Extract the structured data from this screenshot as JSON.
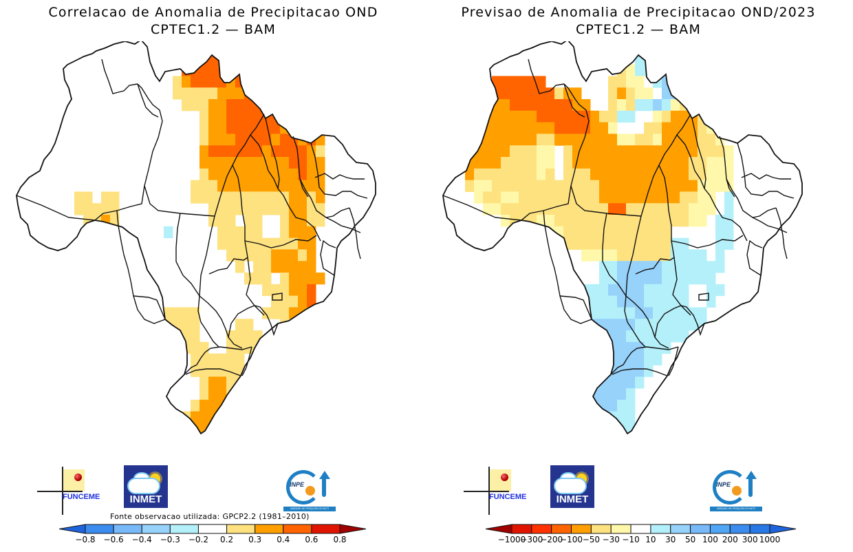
{
  "left_panel": {
    "title_line1": "Correlacao de Anomalia de Precipitacao OND",
    "title_line2": "CPTEC1.2 — BAM",
    "source_note": "Fonte observacao utilizada: GPCP2.2 (1981–2010)",
    "colorbar": {
      "labels": [
        "−0.8",
        "−0.6",
        "−0.4",
        "−0.3",
        "−0.2",
        "0.2",
        "0.3",
        "0.4",
        "0.6",
        "0.8"
      ],
      "colors": [
        "#1e64dc",
        "#3c8cf0",
        "#78b9fa",
        "#96d2fa",
        "#b4f0fa",
        "#ffffff",
        "#fee280",
        "#ffa000",
        "#ff6400",
        "#e11400",
        "#a00000"
      ]
    }
  },
  "right_panel": {
    "title_line1": "Previsao de Anomalia de Precipitacao OND/2023",
    "title_line2": "CPTEC1.2 — BAM",
    "colorbar": {
      "labels": [
        "−1000",
        "−300",
        "−200",
        "−100",
        "−50",
        "−30",
        "−10",
        "10",
        "30",
        "50",
        "100",
        "200",
        "300",
        "1000"
      ],
      "colors": [
        "#a00000",
        "#e11400",
        "#ff3200",
        "#ff6400",
        "#ffa000",
        "#fee280",
        "#fff8aa",
        "#ffffff",
        "#b4f0fa",
        "#96d2fa",
        "#78b9fa",
        "#50a5f5",
        "#3c8cf0",
        "#2878e6",
        "#1e64dc"
      ]
    }
  },
  "logos": {
    "funceme": "FUNCEME",
    "inmet": "INMET",
    "inpe": "INPE",
    "inpe_band": "UNIDADE DE PESQUISA DO MCTI"
  },
  "map_fields": {
    "correlation_grid_legend": [
      "w",
      "y",
      "o",
      "d",
      "b"
    ],
    "correlation_key": {
      "w": "#ffffff",
      "y": "#fee280",
      "o": "#ffa000",
      "d": "#ff6400",
      "b": "#b4f0fa"
    },
    "correlation_grid": [
      "....................ddd...........",
      "...................ddddd.....o....",
      "..................dddddd....oo....",
      ".................yoddddodddooyo...",
      ".................yyyyyooodddooy...",
      "..................yyyoodddddoo....",
      "....................yoodddddddyy..",
      "....................yooddddddooyyo",
      "....................yoooddddoddodo",
      "....................oddddddoddddoy",
      "....................ooooooooooddoo",
      "....................yoooooooooodoo",
      "...................yyyoooooooooooo",
      "......yy.yy........yyyyyyyyyyyooyo",
      "......yyyyy..........yyyyyyyyyooyy",
      ".......yyoy..........yyy.yy..yooyy",
      "........yyy.....b.....yyyyy..yooo.",
      "......................yyyyyyyyyoo.",
      ".......................yyyyyoooyo.",
      "........................y.yyooooo.",
      ".........................yyy.yoooo",
      "...........................yyyood.",
      "............................yyyod.",
      "...............yyyyy.......yyyoo..",
      "...............yyyyy....yy...yyy..",
      "...............yyyyy...yyyy.......",
      "..................yyy..yyyy.......",
      "...................yyyyyy.........",
      "...................yyyyyy.........",
      "....................yooyy.........",
      "....................yooyy.........",
      "...................yoooy..........",
      "..................yooooo..........",
      "..................yoodd...........",
      "...................oodd...........",
      "....................ooo..........."
    ],
    "forecast_grid_legend": [
      "w",
      "p",
      "y",
      "o",
      "d",
      "r",
      "c",
      "l"
    ],
    "forecast_key": {
      "w": "#ffffff",
      "p": "#fff8aa",
      "y": "#fee280",
      "o": "#ffa000",
      "d": "#ff6400",
      "r": "#ff3200",
      "c": "#b4f0fa",
      "l": "#96d2fa"
    },
    "forecast_grid": [
      "....................ccc.....r.....",
      "...................wwcc.....d.....",
      "..................wypcc...yodd....",
      ".....dddddd.......yyppwclc.ood....",
      "....odddddddyoo...yoyppwllcyooo...",
      "...oooodddddddoo..ypycclcpyyddd...",
      "..ooooooooddddddoyyccwwpyoooyy....",
      "..ooooooooooddddoopwwwyyooooyp....",
      "..ooooooooyyoooooooppyypooooyyp...",
      "..oooooyyyppwyooooooooooooooyyyp..",
      "..ooooyyyyppwyoooooooooooooyyppp..",
      "..oyyyyyyypywyyyoooooooooooyyppp..",
      "..yppyyyyyyyyyyyyooooooooooopppp..",
      "...pyyppyyyyyyyyyoooooooooyyppwc..",
      "....ppyyyyyyyyyyyyddyyyyyyypppwc..",
      ".....wpyyyppyyyyyyyyyyyyyyyppwcc..",
      "........ppyppyyyyyyyyyyyywwwwwcc..",
      "..........pppyyyyyyyyyyyyccwwwcc..",
      "...........ppwwppppyyyyyyccccwc...",
      "..............wwwcclllllccccccc...",
      "..............wwwcclllllcccccc....",
      "..............ccccllllcccccwwcc...",
      "..............ccccclllcccccwwc....",
      "..............cccccccllcccccc.....",
      "..............lllllllcccccccc.....",
      "..............llllllccccccc.......",
      "...............lllllllccc.........",
      "...............lllllllcc..........",
      "................llllllc...........",
      "................lllllc............",
      "...............cllllc.............",
      "..............cllllcc.............",
      "..............ccccccc.............",
      "...............cccccc.............",
      "................ccc...............",
      ".................c................"
    ]
  }
}
